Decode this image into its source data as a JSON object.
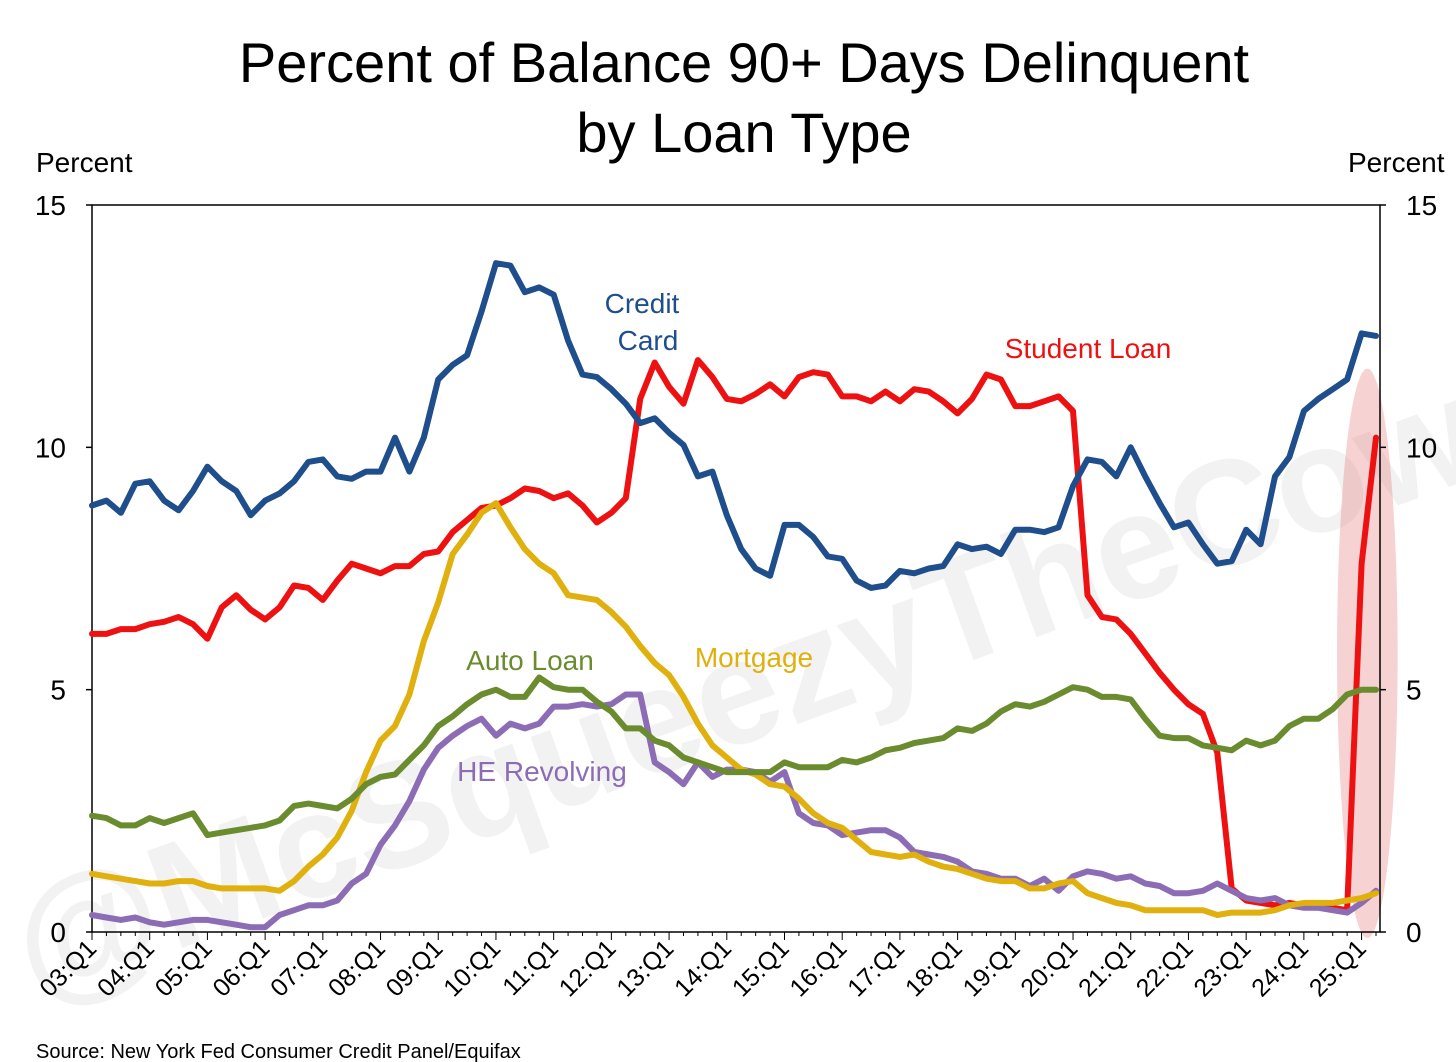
{
  "chart_data": {
    "type": "line",
    "title_lines": [
      "Percent of Balance 90+ Days Delinquent",
      "by Loan Type"
    ],
    "ylabel_left": "Percent",
    "ylabel_right": "Percent",
    "ylim": [
      0,
      15
    ],
    "yticks": [
      "0",
      "5",
      "10",
      "15"
    ],
    "ytick_values": [
      0,
      5,
      10,
      15
    ],
    "x_start": "03:Q1",
    "x_count": 90,
    "xtick_labels": [
      "03:Q1",
      "04:Q1",
      "05:Q1",
      "06:Q1",
      "07:Q1",
      "08:Q1",
      "09:Q1",
      "10:Q1",
      "11:Q1",
      "12:Q1",
      "13:Q1",
      "14:Q1",
      "15:Q1",
      "16:Q1",
      "17:Q1",
      "18:Q1",
      "19:Q1",
      "20:Q1",
      "21:Q1",
      "22:Q1",
      "23:Q1",
      "24:Q1",
      "25:Q1"
    ],
    "xtick_indices": [
      0,
      4,
      8,
      12,
      16,
      20,
      24,
      28,
      32,
      36,
      40,
      44,
      48,
      52,
      56,
      60,
      64,
      68,
      72,
      76,
      80,
      84,
      88
    ],
    "highlight": {
      "x_from_index": 86.3,
      "x_to_index": 90.5,
      "y_from": 0.0,
      "y_to": 11.5,
      "color": "#e06a6a",
      "opacity": 0.3
    },
    "series": [
      {
        "name": "Credit Card",
        "label_lines": [
          "Credit",
          "Card"
        ],
        "color": "#1f4e8c",
        "values": [
          8.8,
          8.9,
          8.65,
          9.25,
          9.3,
          8.9,
          8.7,
          9.1,
          9.6,
          9.3,
          9.1,
          8.6,
          8.9,
          9.05,
          9.3,
          9.7,
          9.75,
          9.4,
          9.35,
          9.5,
          9.5,
          10.2,
          9.5,
          10.2,
          11.4,
          11.7,
          11.9,
          12.8,
          13.8,
          13.75,
          13.2,
          13.3,
          13.15,
          12.2,
          11.5,
          11.45,
          11.2,
          10.9,
          10.5,
          10.6,
          10.3,
          10.05,
          9.4,
          9.5,
          8.6,
          7.9,
          7.5,
          7.35,
          8.4,
          8.4,
          8.15,
          7.75,
          7.7,
          7.25,
          7.1,
          7.15,
          7.45,
          7.4,
          7.5,
          7.55,
          8.0,
          7.9,
          7.95,
          7.8,
          8.3,
          8.3,
          8.25,
          8.35,
          9.2,
          9.75,
          9.7,
          9.4,
          10.0,
          9.4,
          8.85,
          8.35,
          8.45,
          8.0,
          7.6,
          7.65,
          8.3,
          8.0,
          9.4,
          9.8,
          10.75,
          11.0,
          11.2,
          11.4,
          12.35,
          12.3
        ]
      },
      {
        "name": "Student Loan",
        "label_lines": [
          "Student Loan"
        ],
        "color": "#ee1111",
        "values": [
          6.15,
          6.15,
          6.25,
          6.25,
          6.35,
          6.4,
          6.5,
          6.35,
          6.05,
          6.7,
          6.95,
          6.65,
          6.45,
          6.7,
          7.15,
          7.1,
          6.85,
          7.25,
          7.6,
          7.5,
          7.4,
          7.55,
          7.55,
          7.8,
          7.85,
          8.25,
          8.5,
          8.75,
          8.8,
          8.95,
          9.15,
          9.1,
          8.95,
          9.05,
          8.8,
          8.45,
          8.65,
          8.95,
          11.0,
          11.75,
          11.25,
          10.9,
          11.8,
          11.45,
          11.0,
          10.95,
          11.1,
          11.3,
          11.05,
          11.45,
          11.55,
          11.5,
          11.05,
          11.05,
          10.95,
          11.15,
          10.95,
          11.2,
          11.15,
          10.95,
          10.7,
          11.0,
          11.5,
          11.4,
          10.85,
          10.85,
          10.95,
          11.05,
          10.75,
          6.95,
          6.5,
          6.45,
          6.15,
          5.75,
          5.35,
          5.0,
          4.7,
          4.5,
          3.7,
          0.9,
          0.65,
          0.6,
          0.55,
          0.6,
          0.55,
          0.55,
          0.5,
          0.45,
          7.6,
          10.2
        ]
      },
      {
        "name": "Mortgage",
        "label_lines": [
          "Mortgage"
        ],
        "color": "#e0b00e",
        "values": [
          1.2,
          1.15,
          1.1,
          1.05,
          1.0,
          1.0,
          1.05,
          1.05,
          0.95,
          0.9,
          0.9,
          0.9,
          0.9,
          0.85,
          1.05,
          1.35,
          1.6,
          1.95,
          2.5,
          3.3,
          3.95,
          4.25,
          4.9,
          6.0,
          6.8,
          7.8,
          8.2,
          8.65,
          8.85,
          8.35,
          7.9,
          7.6,
          7.4,
          6.95,
          6.9,
          6.85,
          6.6,
          6.3,
          5.9,
          5.55,
          5.3,
          4.85,
          4.3,
          3.85,
          3.6,
          3.35,
          3.25,
          3.05,
          3.0,
          2.75,
          2.45,
          2.25,
          2.15,
          1.9,
          1.65,
          1.6,
          1.55,
          1.6,
          1.45,
          1.35,
          1.3,
          1.2,
          1.1,
          1.05,
          1.05,
          0.9,
          0.9,
          1.0,
          1.05,
          0.8,
          0.7,
          0.6,
          0.55,
          0.45,
          0.45,
          0.45,
          0.45,
          0.45,
          0.35,
          0.4,
          0.4,
          0.4,
          0.45,
          0.55,
          0.6,
          0.6,
          0.6,
          0.65,
          0.7,
          0.8
        ]
      },
      {
        "name": "Auto Loan",
        "label_lines": [
          "Auto Loan"
        ],
        "color": "#6a8c2f",
        "values": [
          2.4,
          2.35,
          2.2,
          2.2,
          2.35,
          2.25,
          2.35,
          2.45,
          2.0,
          2.05,
          2.1,
          2.15,
          2.2,
          2.3,
          2.6,
          2.65,
          2.6,
          2.55,
          2.75,
          3.05,
          3.2,
          3.25,
          3.55,
          3.85,
          4.25,
          4.45,
          4.7,
          4.9,
          5.0,
          4.85,
          4.85,
          5.25,
          5.05,
          5.0,
          5.0,
          4.75,
          4.55,
          4.2,
          4.2,
          3.95,
          3.85,
          3.6,
          3.5,
          3.4,
          3.3,
          3.3,
          3.3,
          3.3,
          3.5,
          3.4,
          3.4,
          3.4,
          3.55,
          3.5,
          3.6,
          3.75,
          3.8,
          3.9,
          3.95,
          4.0,
          4.2,
          4.15,
          4.3,
          4.55,
          4.7,
          4.65,
          4.75,
          4.9,
          5.05,
          5.0,
          4.85,
          4.85,
          4.8,
          4.4,
          4.05,
          4.0,
          4.0,
          3.85,
          3.8,
          3.75,
          3.95,
          3.85,
          3.95,
          4.25,
          4.4,
          4.4,
          4.6,
          4.9,
          5.0,
          5.0
        ]
      },
      {
        "name": "HE Revolving",
        "label_lines": [
          "HE Revolving"
        ],
        "color": "#8c6cb4",
        "values": [
          0.35,
          0.3,
          0.25,
          0.3,
          0.2,
          0.15,
          0.2,
          0.25,
          0.25,
          0.2,
          0.15,
          0.1,
          0.1,
          0.35,
          0.45,
          0.55,
          0.55,
          0.65,
          1.0,
          1.2,
          1.8,
          2.2,
          2.7,
          3.35,
          3.8,
          4.05,
          4.25,
          4.4,
          4.05,
          4.3,
          4.2,
          4.3,
          4.65,
          4.65,
          4.7,
          4.65,
          4.7,
          4.9,
          4.9,
          3.5,
          3.3,
          3.05,
          3.5,
          3.2,
          3.35,
          3.35,
          3.3,
          3.1,
          3.3,
          2.45,
          2.25,
          2.2,
          2.0,
          2.05,
          2.1,
          2.1,
          1.95,
          1.65,
          1.6,
          1.55,
          1.45,
          1.25,
          1.2,
          1.1,
          1.1,
          0.95,
          1.1,
          0.85,
          1.15,
          1.25,
          1.2,
          1.1,
          1.15,
          1.0,
          0.95,
          0.8,
          0.8,
          0.85,
          1.0,
          0.85,
          0.7,
          0.65,
          0.7,
          0.55,
          0.5,
          0.5,
          0.45,
          0.4,
          0.6,
          0.85
        ]
      }
    ],
    "source": "Source: New York Fed Consumer Credit Panel/Equifax",
    "watermark": "@McSqueezyTheCow"
  }
}
